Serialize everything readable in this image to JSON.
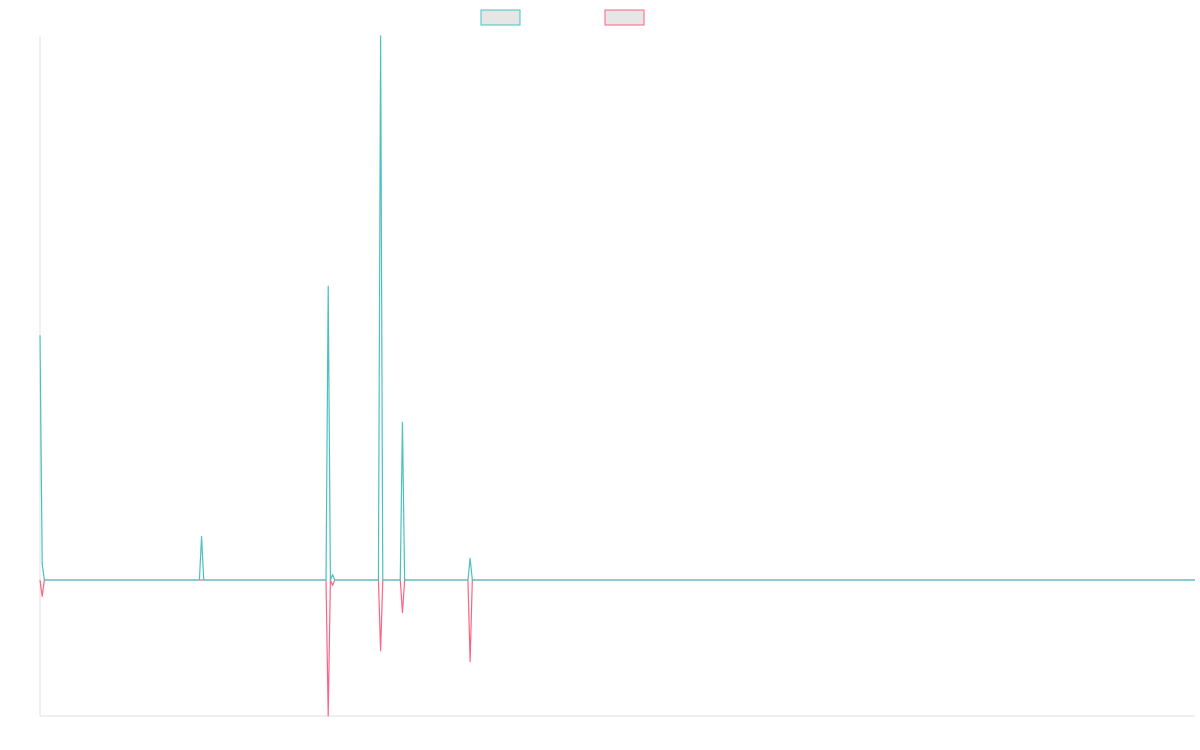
{
  "colors": {
    "series_1": "#4bc0c0",
    "series_2": "#ff6384",
    "legend_fill": "#e6e6e6",
    "axis": "#e0e0e0"
  },
  "chart_data": {
    "type": "line",
    "title": "",
    "xlabel": "",
    "ylabel": "",
    "grid": false,
    "legend_position": "top-center",
    "x_count": 530,
    "ylim": [
      -0.25,
      1.0
    ],
    "series": [
      {
        "color": "#4bc0c0",
        "baseline": 0,
        "peaks": [
          {
            "index": 0,
            "value": 0.45
          },
          {
            "index": 1,
            "value": 0.03
          },
          {
            "index": 74,
            "value": 0.08
          },
          {
            "index": 132,
            "value": 0.54
          },
          {
            "index": 134,
            "value": 0.01
          },
          {
            "index": 156,
            "value": 1.0
          },
          {
            "index": 166,
            "value": 0.29
          },
          {
            "index": 197,
            "value": 0.04
          }
        ]
      },
      {
        "color": "#ff6384",
        "baseline": 0,
        "peaks": [
          {
            "index": 1,
            "value": -0.03
          },
          {
            "index": 132,
            "value": -0.25
          },
          {
            "index": 134,
            "value": -0.01
          },
          {
            "index": 156,
            "value": -0.13
          },
          {
            "index": 166,
            "value": -0.06
          },
          {
            "index": 197,
            "value": -0.15
          }
        ]
      }
    ]
  }
}
